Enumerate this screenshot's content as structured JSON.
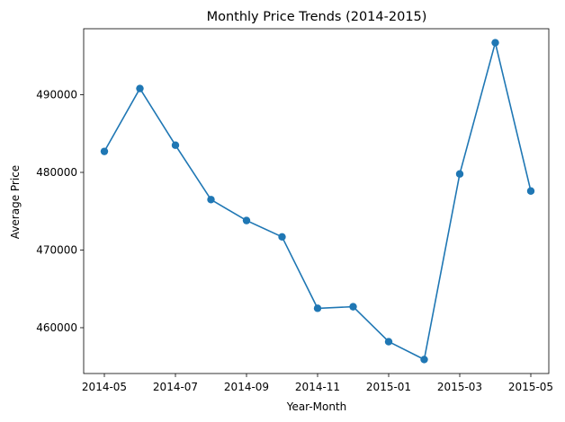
{
  "chart_data": {
    "type": "line",
    "title": "Monthly Price Trends (2014-2015)",
    "xlabel": "Year-Month",
    "ylabel": "Average Price",
    "x": [
      "2014-05",
      "2014-06",
      "2014-07",
      "2014-08",
      "2014-09",
      "2014-10",
      "2014-11",
      "2014-12",
      "2015-01",
      "2015-02",
      "2015-03",
      "2015-04",
      "2015-05"
    ],
    "series": [
      {
        "values": [
          482700,
          490800,
          483500,
          476500,
          473800,
          471700,
          462500,
          462700,
          458200,
          455900,
          479800,
          496700,
          477600
        ],
        "color": "#1f77b4",
        "marker": "circle"
      }
    ],
    "xticks": [
      "2014-05",
      "2014-07",
      "2014-09",
      "2014-11",
      "2015-01",
      "2015-03",
      "2015-05"
    ],
    "yticks": [
      460000,
      470000,
      480000,
      490000
    ],
    "ylim": [
      454100,
      498500
    ],
    "grid": false,
    "legend": "none"
  }
}
